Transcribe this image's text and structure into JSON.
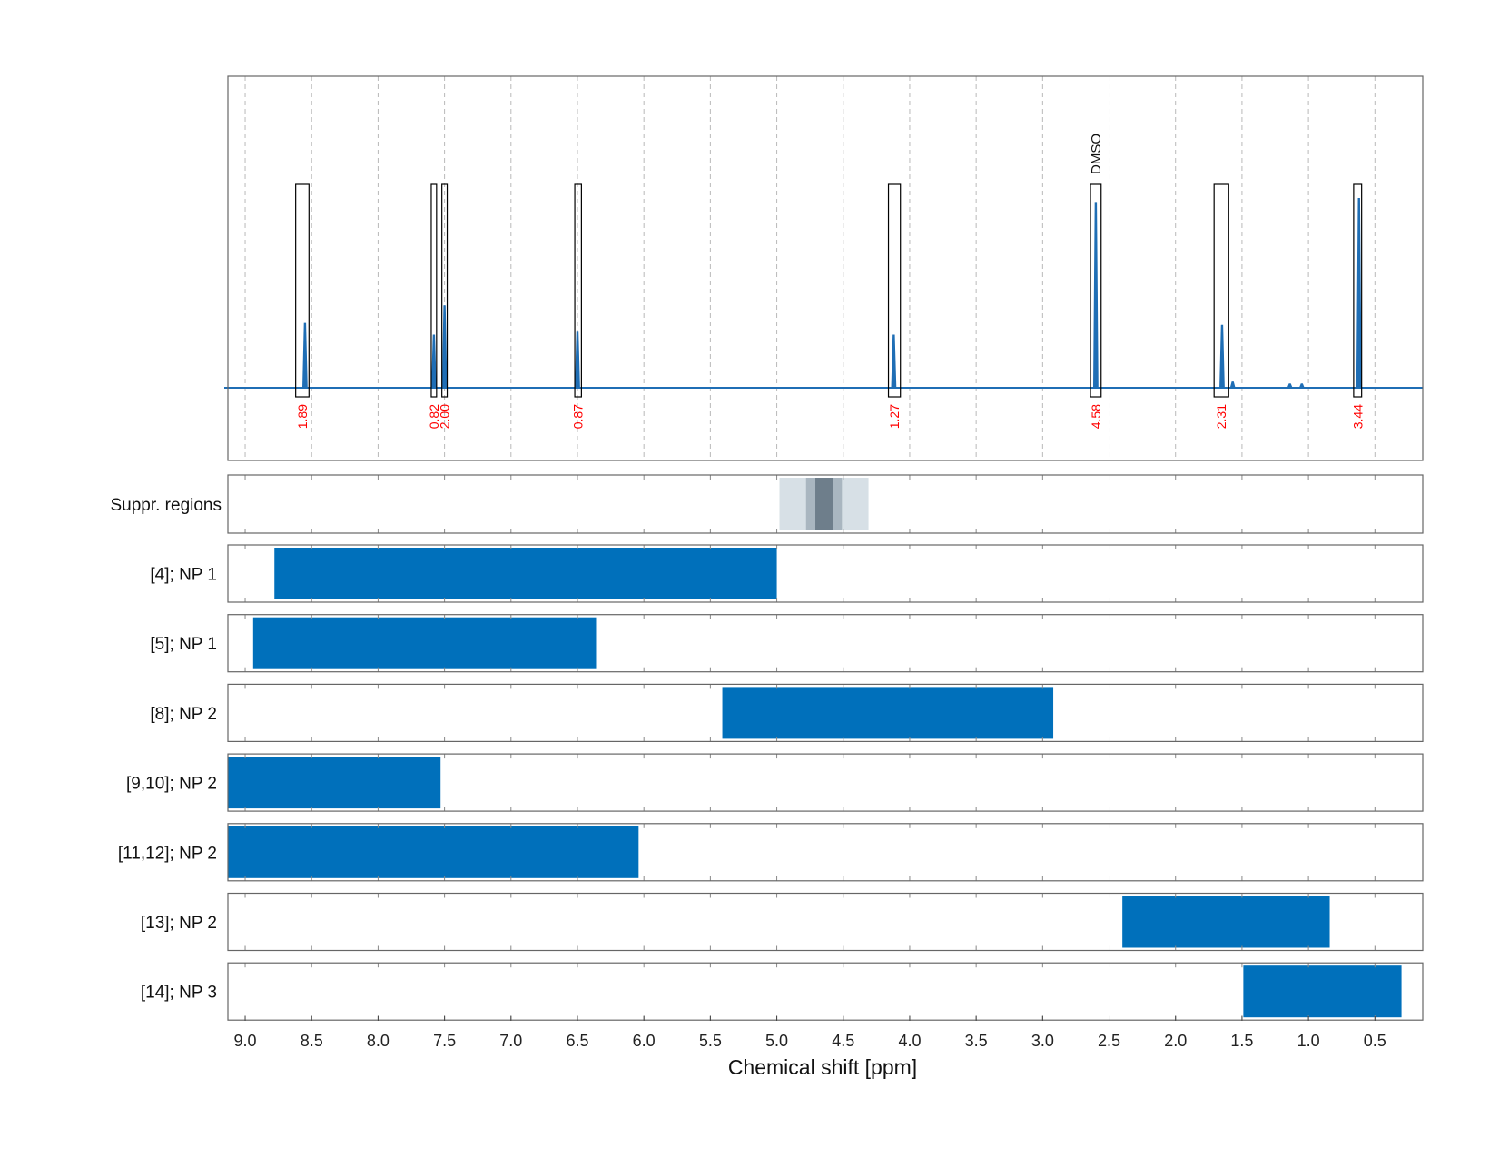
{
  "chart_data": {
    "type": "nmr_spectrum_with_ranges",
    "xlabel": "Chemical shift [ppm]",
    "xlim": [
      9.13,
      0.14
    ],
    "x_ticks": [
      "9.0",
      "8.5",
      "8.0",
      "7.5",
      "7.0",
      "6.5",
      "6.0",
      "5.5",
      "5.0",
      "4.5",
      "4.0",
      "3.5",
      "3.0",
      "2.5",
      "2.0",
      "1.5",
      "1.0",
      "0.5"
    ],
    "grid": "dashed vertical",
    "colors": {
      "spectrum": "#1f6eb5",
      "bar": "#0070bb",
      "integral_label": "#ff0000",
      "box": "#000000"
    },
    "spectrum_peaks": [
      {
        "ppm": 8.55,
        "height": 0.33
      },
      {
        "ppm": 7.58,
        "height": 0.27
      },
      {
        "ppm": 7.5,
        "height": 0.42
      },
      {
        "ppm": 6.5,
        "height": 0.29
      },
      {
        "ppm": 4.12,
        "height": 0.27
      },
      {
        "ppm": 2.6,
        "height": 0.95
      },
      {
        "ppm": 1.65,
        "height": 0.32
      },
      {
        "ppm": 1.57,
        "height": 0.03
      },
      {
        "ppm": 1.14,
        "height": 0.02
      },
      {
        "ppm": 1.05,
        "height": 0.02
      },
      {
        "ppm": 0.62,
        "height": 0.97
      }
    ],
    "integral_regions": [
      {
        "from": 8.62,
        "to": 8.52,
        "label": "1.89"
      },
      {
        "from": 7.6,
        "to": 7.56,
        "label": "0.82"
      },
      {
        "from": 7.52,
        "to": 7.48,
        "label": "2.00"
      },
      {
        "from": 6.52,
        "to": 6.47,
        "label": "0.87"
      },
      {
        "from": 4.16,
        "to": 4.07,
        "label": "1.27"
      },
      {
        "from": 2.64,
        "to": 2.56,
        "label": "4.58"
      },
      {
        "from": 1.71,
        "to": 1.6,
        "label": "2.31"
      },
      {
        "from": 0.66,
        "to": 0.6,
        "label": "3.44"
      }
    ],
    "annotations": [
      {
        "ppm": 2.6,
        "text": "DMSO"
      }
    ],
    "suppression_row": {
      "label": "Suppr. regions",
      "regions": [
        {
          "from": 4.98,
          "to": 4.31,
          "shade": "light"
        },
        {
          "from": 4.78,
          "to": 4.51,
          "shade": "medium"
        },
        {
          "from": 4.71,
          "to": 4.58,
          "shade": "dark"
        }
      ]
    },
    "range_rows": [
      {
        "label": "[4]; NP 1",
        "from": 8.78,
        "to": 5.0
      },
      {
        "label": "[5]; NP 1",
        "from": 8.94,
        "to": 6.36
      },
      {
        "label": "[8]; NP 2",
        "from": 5.41,
        "to": 2.92
      },
      {
        "label": "[9,10]; NP 2",
        "from": 9.13,
        "to": 7.53
      },
      {
        "label": "[11,12]; NP 2",
        "from": 9.13,
        "to": 6.04
      },
      {
        "label": "[13]; NP 2",
        "from": 2.4,
        "to": 0.84
      },
      {
        "label": "[14]; NP 3",
        "from": 1.49,
        "to": 0.3
      }
    ]
  }
}
